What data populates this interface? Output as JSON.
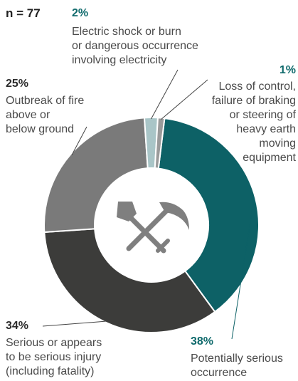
{
  "n_label": "n = 77",
  "colors": {
    "pct_dark": "#2b2b2b",
    "pct_teal": "#0f6a6c"
  },
  "chart_data": {
    "type": "pie",
    "donut": true,
    "title": "",
    "total": 77,
    "center_icon": "shovel-and-pickaxe-icon",
    "slices": [
      {
        "pct_label": "38%",
        "value": 38,
        "label_lines": [
          "Potentially serious",
          "occurrence"
        ],
        "color": "#0d6166"
      },
      {
        "pct_label": "34%",
        "value": 34,
        "label_lines": [
          "Serious or appears",
          "to be serious injury",
          "(including fatality)"
        ],
        "color": "#3c3c3a"
      },
      {
        "pct_label": "25%",
        "value": 25,
        "label_lines": [
          "Outbreak of fire",
          "above or",
          "below ground"
        ],
        "color": "#7a7a7a"
      },
      {
        "pct_label": "2%",
        "value": 2,
        "label_lines": [
          "Electric shock or burn",
          "or dangerous occurrence",
          "involving electricity"
        ],
        "color": "#a9c5c7"
      },
      {
        "pct_label": "1%",
        "value": 1,
        "label_lines": [
          "Loss of control,",
          "failure of braking",
          "or steering of",
          "heavy earth",
          "moving",
          "equipment"
        ],
        "color": "#9a9a9a"
      }
    ]
  }
}
